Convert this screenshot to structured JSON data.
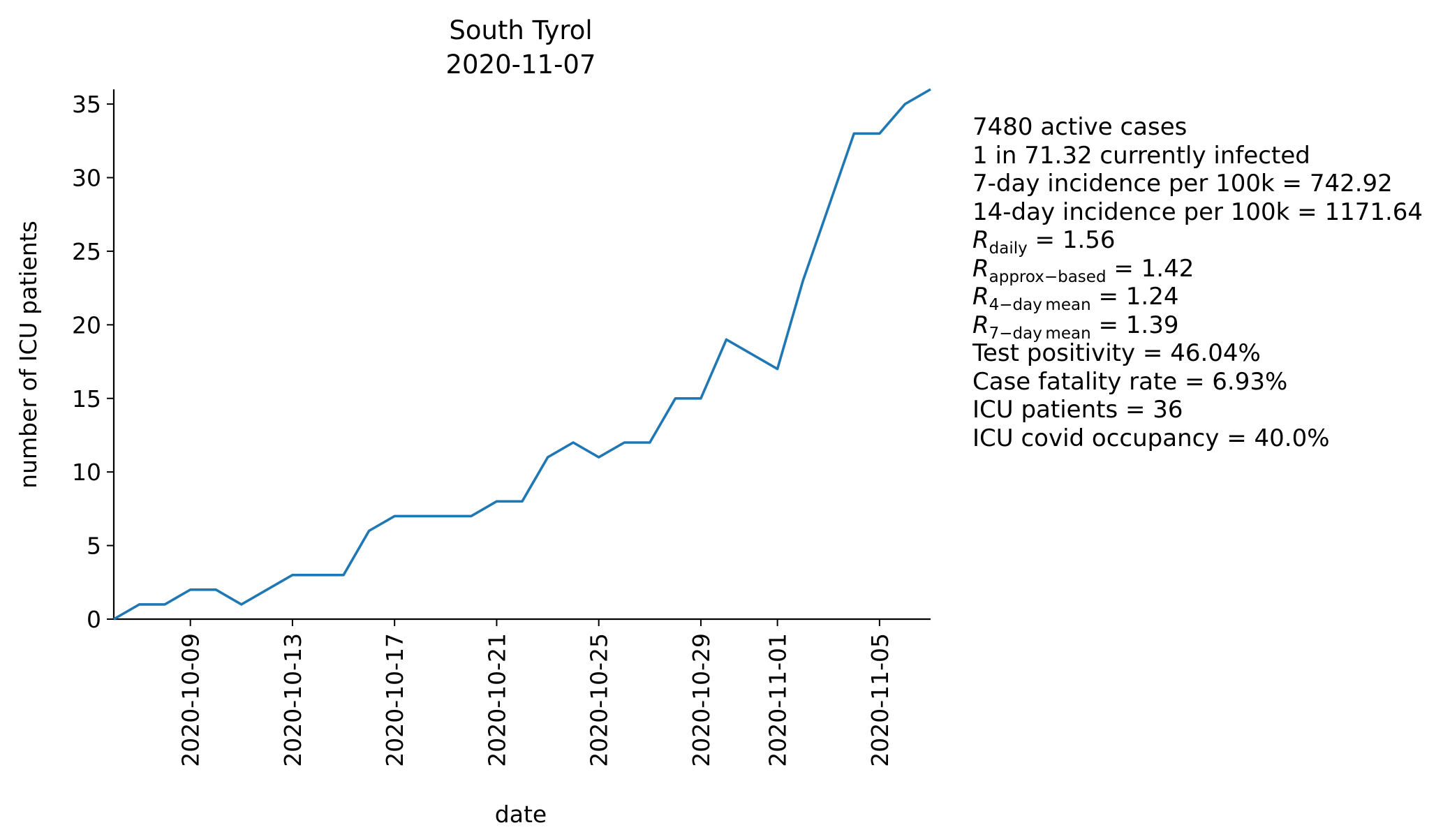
{
  "chart_data": {
    "type": "line",
    "title": "South Tyrol",
    "subtitle": "2020-11-07",
    "xlabel": "date",
    "ylabel": "number of ICU patients",
    "x_start": "2020-10-06",
    "x_end": "2020-11-07",
    "ylim": [
      0,
      36
    ],
    "grid": false,
    "xticks": [
      "2020-10-09",
      "2020-10-13",
      "2020-10-17",
      "2020-10-21",
      "2020-10-25",
      "2020-10-29",
      "2020-11-01",
      "2020-11-05"
    ],
    "yticks": [
      0,
      5,
      10,
      15,
      20,
      25,
      30,
      35
    ],
    "line_color": "#1f77b4",
    "series": [
      {
        "dates": [
          "2020-10-06",
          "2020-10-07",
          "2020-10-08",
          "2020-10-09",
          "2020-10-10",
          "2020-10-11",
          "2020-10-12",
          "2020-10-13",
          "2020-10-14",
          "2020-10-15",
          "2020-10-16",
          "2020-10-17",
          "2020-10-18",
          "2020-10-19",
          "2020-10-20",
          "2020-10-21",
          "2020-10-22",
          "2020-10-23",
          "2020-10-24",
          "2020-10-25",
          "2020-10-26",
          "2020-10-27",
          "2020-10-28",
          "2020-10-29",
          "2020-10-30",
          "2020-11-01",
          "2020-11-02",
          "2020-11-03",
          "2020-11-04",
          "2020-11-05",
          "2020-11-06",
          "2020-11-07"
        ],
        "values": [
          0,
          1,
          1,
          2,
          2,
          1,
          2,
          3,
          3,
          3,
          6,
          7,
          7,
          7,
          7,
          8,
          8,
          11,
          12,
          11,
          12,
          12,
          15,
          15,
          19,
          17,
          23,
          28,
          33,
          33,
          35,
          36
        ]
      }
    ]
  },
  "stats": {
    "active_cases": "7480 active cases",
    "currently_infected": "1 in 71.32 currently infected",
    "incidence_7d": "7-day incidence per 100k = 742.92",
    "incidence_14d": "14-day incidence per 100k = 1171.64",
    "r_symbol": "R",
    "r_daily_sub": "daily",
    "r_daily_value": " = 1.56",
    "r_approx_sub": "approx−based",
    "r_approx_value": " = 1.42",
    "r_4day_sub": "4−day mean",
    "r_4day_value": " = 1.24",
    "r_7day_sub": "7−day mean",
    "r_7day_value": " = 1.39",
    "test_positivity": "Test positivity = 46.04%",
    "case_fatality": "Case fatality rate = 6.93%",
    "icu_patients": "ICU patients = 36",
    "icu_occupancy": "ICU covid occupancy = 40.0%"
  }
}
